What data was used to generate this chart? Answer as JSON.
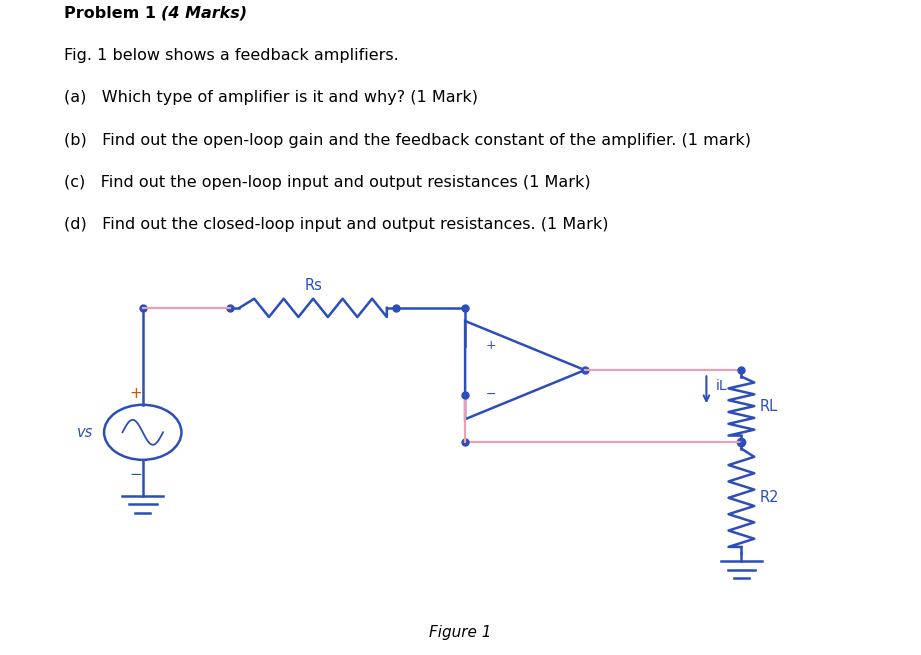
{
  "blue": "#2b4eba",
  "pink": "#e8a0b4",
  "orange": "#cc5500",
  "bg": "#ffffff",
  "title": "Problem 1 (4 Marks)",
  "line1": "Fig. 1 below shows a feedback amplifiers.",
  "line2": "(a)   Which type of amplifier is it and why? (1 Mark)",
  "line3": "(b)   Find out the open-loop gain and the feedback constant of the amplifier. (1 mark)",
  "line4": "(c)   Find out the open-loop input and output resistances (1 Mark)",
  "line5": "(d)   Find out the closed-loop input and output resistances. (1 Mark)",
  "caption": "Figure 1"
}
